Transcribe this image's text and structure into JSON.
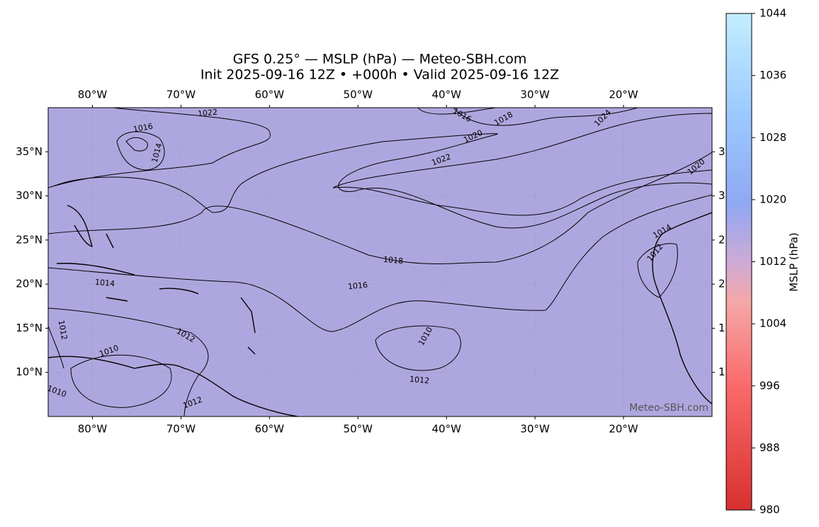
{
  "chart_data": {
    "type": "map",
    "title": "GFS 0.25° — MSLP (hPa) — Meteo-SBH.com",
    "subtitle": "Init 2025-09-16 12Z • +000h • Valid 2025-09-16 12Z",
    "xlim": [
      -85,
      -10
    ],
    "ylim": [
      5,
      40
    ],
    "xticks": [
      {
        "value": -80,
        "label": "80°W"
      },
      {
        "value": -70,
        "label": "70°W"
      },
      {
        "value": -60,
        "label": "60°W"
      },
      {
        "value": -50,
        "label": "50°W"
      },
      {
        "value": -40,
        "label": "40°W"
      },
      {
        "value": -30,
        "label": "30°W"
      },
      {
        "value": -20,
        "label": "20°W"
      }
    ],
    "yticks": [
      {
        "value": 35,
        "label": "35°N"
      },
      {
        "value": 30,
        "label": "30°N"
      },
      {
        "value": 25,
        "label": "25°N"
      },
      {
        "value": 20,
        "label": "20°N"
      },
      {
        "value": 15,
        "label": "15°N"
      },
      {
        "value": 10,
        "label": "10°N"
      }
    ],
    "right_tick_fragments": [
      "3",
      "3",
      "2",
      "2",
      "1",
      "1"
    ],
    "contour_labels": [
      "1022",
      "1016",
      "1014",
      "1016",
      "1018",
      "1020",
      "1022",
      "1024",
      "1020",
      "1018",
      "1016",
      "1014",
      "1014",
      "1012",
      "1012",
      "1010",
      "1010",
      "1012",
      "1012",
      "1010",
      "1012"
    ],
    "watermark": "Meteo-SBH.com",
    "colorbar": {
      "label": "MSLP (hPa)",
      "lim": [
        980,
        1044
      ],
      "ticks": [
        980,
        988,
        996,
        1004,
        1012,
        1020,
        1028,
        1036,
        1044
      ]
    }
  }
}
